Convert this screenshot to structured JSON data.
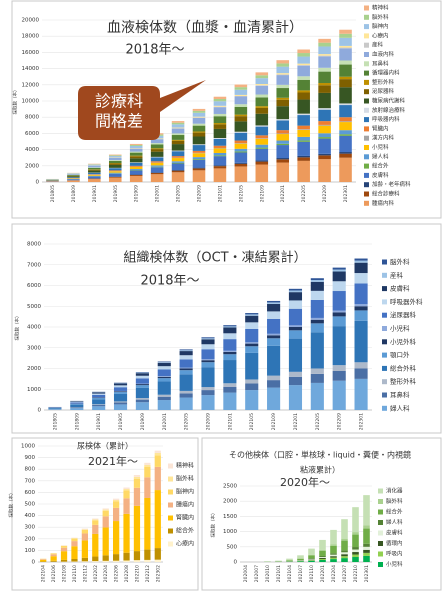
{
  "chart_data": [
    {
      "type": "bar",
      "stacked": true,
      "grid": true,
      "title": "血液検体数（血漿・血清累計）",
      "subtitle": "2018年～",
      "ylabel": "採取数（本）",
      "annotations": [
        "診療科",
        "間格差"
      ],
      "ylim": [
        0,
        20000
      ],
      "yticks": [
        0,
        2000,
        4000,
        6000,
        8000,
        10000,
        12000,
        14000,
        16000,
        18000,
        20000
      ],
      "categories": [
        "201805",
        "201809",
        "201901",
        "201905",
        "201909",
        "202001",
        "202005",
        "202009",
        "202101",
        "202105",
        "202109",
        "202201",
        "202205",
        "202209",
        "202301"
      ],
      "series": [
        {
          "name": "精神科",
          "color": "#f4b183",
          "values": [
            10,
            30,
            60,
            90,
            125,
            160,
            200,
            240,
            280,
            320,
            360,
            400,
            435,
            470,
            500
          ]
        },
        {
          "name": "脳外科",
          "color": "#a9d18e",
          "values": [
            10,
            30,
            60,
            90,
            125,
            160,
            200,
            240,
            280,
            320,
            360,
            400,
            435,
            470,
            500
          ]
        },
        {
          "name": "脳神内",
          "color": "#9dc3e6",
          "values": [
            20,
            60,
            120,
            180,
            250,
            320,
            400,
            480,
            560,
            640,
            720,
            800,
            870,
            940,
            1000
          ]
        },
        {
          "name": "心療内",
          "color": "#ffe699",
          "values": [
            4,
            12,
            24,
            36,
            50,
            64,
            80,
            96,
            112,
            128,
            144,
            160,
            174,
            188,
            200
          ]
        },
        {
          "name": "産科",
          "color": "#c9c9c9",
          "values": [
            2,
            6,
            12,
            18,
            25,
            32,
            40,
            48,
            56,
            64,
            72,
            80,
            87,
            94,
            100
          ]
        },
        {
          "name": "血液内科",
          "color": "#8faadc",
          "values": [
            30,
            90,
            180,
            270,
            375,
            480,
            600,
            720,
            840,
            960,
            1080,
            1200,
            1305,
            1410,
            1500
          ]
        },
        {
          "name": "耳鼻科",
          "color": "#c5e0b4",
          "values": [
            10,
            30,
            60,
            90,
            125,
            160,
            200,
            240,
            280,
            320,
            360,
            400,
            435,
            470,
            500
          ]
        },
        {
          "name": "循環器内科",
          "color": "#548235",
          "values": [
            30,
            90,
            180,
            270,
            375,
            480,
            600,
            720,
            840,
            960,
            1080,
            1200,
            1305,
            1410,
            1500
          ]
        },
        {
          "name": "整形外科",
          "color": "#bf9000",
          "values": [
            6,
            18,
            36,
            54,
            75,
            96,
            120,
            144,
            168,
            192,
            216,
            240,
            261,
            282,
            300
          ]
        },
        {
          "name": "泌尿器科",
          "color": "#7f6000",
          "values": [
            20,
            60,
            120,
            180,
            250,
            320,
            400,
            480,
            560,
            640,
            720,
            800,
            870,
            940,
            1000
          ]
        },
        {
          "name": "糖尿病代謝科",
          "color": "#375623",
          "values": [
            40,
            120,
            240,
            360,
            500,
            640,
            800,
            960,
            1120,
            1280,
            1440,
            1600,
            1740,
            1880,
            2000
          ]
        },
        {
          "name": "放射線治療科",
          "color": "#d6dce5",
          "values": [
            4,
            12,
            24,
            36,
            50,
            64,
            80,
            96,
            112,
            128,
            144,
            160,
            174,
            188,
            200
          ]
        },
        {
          "name": "呼吸器内科",
          "color": "#2e75b6",
          "values": [
            30,
            90,
            180,
            270,
            375,
            480,
            600,
            720,
            840,
            960,
            1080,
            1200,
            1305,
            1410,
            1500
          ]
        },
        {
          "name": "腎臓内",
          "color": "#ed7d31",
          "values": [
            10,
            30,
            60,
            90,
            125,
            160,
            200,
            240,
            280,
            320,
            360,
            400,
            435,
            470,
            500
          ]
        },
        {
          "name": "漢方内科",
          "color": "#a5a5a5",
          "values": [
            2,
            6,
            12,
            18,
            25,
            32,
            40,
            48,
            56,
            64,
            72,
            80,
            87,
            94,
            100
          ]
        },
        {
          "name": "小児科",
          "color": "#ffc000",
          "values": [
            20,
            60,
            120,
            180,
            250,
            320,
            400,
            480,
            560,
            640,
            720,
            800,
            870,
            940,
            1000
          ]
        },
        {
          "name": "婦人科",
          "color": "#5b9bd5",
          "values": [
            10,
            30,
            60,
            90,
            125,
            160,
            200,
            240,
            280,
            320,
            360,
            400,
            435,
            470,
            500
          ]
        },
        {
          "name": "総合外",
          "color": "#70ad47",
          "values": [
            4,
            12,
            24,
            36,
            50,
            64,
            80,
            96,
            112,
            128,
            144,
            160,
            174,
            188,
            200
          ]
        },
        {
          "name": "皮膚科",
          "color": "#4472c4",
          "values": [
            40,
            120,
            240,
            360,
            500,
            640,
            800,
            960,
            1120,
            1280,
            1440,
            1600,
            1740,
            1880,
            2000
          ]
        },
        {
          "name": "加齢・老年病科",
          "color": "#264478",
          "values": [
            4,
            12,
            24,
            36,
            50,
            64,
            80,
            96,
            112,
            128,
            144,
            160,
            174,
            188,
            200
          ]
        },
        {
          "name": "総合診療科",
          "color": "#9e480e",
          "values": [
            10,
            30,
            60,
            90,
            125,
            160,
            200,
            240,
            280,
            320,
            360,
            400,
            435,
            470,
            500
          ]
        },
        {
          "name": "腫瘍内科",
          "color": "#ed9a5c",
          "values": [
            60,
            180,
            360,
            540,
            750,
            960,
            1200,
            1440,
            1680,
            1920,
            2160,
            2400,
            2610,
            2820,
            3000
          ]
        }
      ]
    },
    {
      "type": "bar",
      "stacked": true,
      "grid": true,
      "title": "組織検体数（OCT・凍結累計）",
      "subtitle": "2018年～",
      "ylabel": "採取数（本）",
      "ylim": [
        0,
        8000
      ],
      "yticks": [
        0,
        1000,
        2000,
        3000,
        4000,
        5000,
        6000,
        7000,
        8000
      ],
      "categories": [
        "201805",
        "201809",
        "201901",
        "201905",
        "201909",
        "202001",
        "202005",
        "202009",
        "202101",
        "202105",
        "202109",
        "202201",
        "202205",
        "202209",
        "202301"
      ],
      "series": [
        {
          "name": "脳外科",
          "color": "#2f5597",
          "values": [
            2,
            6,
            12,
            18,
            25,
            32,
            40,
            48,
            56,
            64,
            72,
            80,
            87,
            94,
            100
          ]
        },
        {
          "name": "産科",
          "color": "#9dc3e6",
          "values": [
            2,
            6,
            12,
            18,
            25,
            32,
            40,
            48,
            56,
            64,
            72,
            80,
            87,
            94,
            100
          ]
        },
        {
          "name": "皮膚科",
          "color": "#1f3864",
          "values": [
            10,
            30,
            60,
            90,
            125,
            160,
            200,
            240,
            280,
            320,
            360,
            400,
            435,
            470,
            500
          ]
        },
        {
          "name": "呼吸器外科",
          "color": "#bdd7ee",
          "values": [
            10,
            30,
            60,
            90,
            125,
            160,
            200,
            240,
            280,
            320,
            360,
            400,
            435,
            470,
            500
          ]
        },
        {
          "name": "泌尿器科",
          "color": "#4472c4",
          "values": [
            20,
            60,
            120,
            180,
            250,
            320,
            400,
            480,
            560,
            640,
            720,
            800,
            870,
            940,
            1000
          ]
        },
        {
          "name": "小児科",
          "color": "#8faadc",
          "values": [
            2,
            6,
            12,
            18,
            25,
            32,
            40,
            48,
            56,
            64,
            72,
            80,
            87,
            94,
            100
          ]
        },
        {
          "name": "小児外科",
          "color": "#203864",
          "values": [
            4,
            12,
            24,
            36,
            50,
            64,
            80,
            96,
            112,
            128,
            144,
            160,
            174,
            188,
            200
          ]
        },
        {
          "name": "顎口外",
          "color": "#5b9bd5",
          "values": [
            10,
            30,
            60,
            90,
            125,
            160,
            200,
            240,
            280,
            320,
            360,
            400,
            435,
            470,
            500
          ]
        },
        {
          "name": "総合外科",
          "color": "#2e75b6",
          "values": [
            40,
            120,
            240,
            360,
            500,
            640,
            800,
            960,
            1120,
            1280,
            1440,
            1600,
            1740,
            1880,
            2000
          ]
        },
        {
          "name": "整形外科",
          "color": "#adb9ca",
          "values": [
            6,
            18,
            36,
            54,
            75,
            96,
            120,
            144,
            168,
            192,
            216,
            240,
            261,
            282,
            300
          ]
        },
        {
          "name": "耳鼻科",
          "color": "#4a6fa5",
          "values": [
            10,
            30,
            60,
            90,
            125,
            160,
            200,
            240,
            280,
            320,
            360,
            400,
            435,
            470,
            500
          ]
        },
        {
          "name": "婦人科",
          "color": "#6fa8dc",
          "values": [
            30,
            90,
            180,
            270,
            375,
            480,
            600,
            720,
            840,
            960,
            1080,
            1200,
            1305,
            1410,
            1500
          ]
        }
      ]
    },
    {
      "type": "bar",
      "stacked": true,
      "grid": true,
      "title": "尿検体（累計）",
      "subtitle": "2021年～",
      "ylabel": "採取数（本）",
      "ylim": [
        0,
        1000
      ],
      "yticks": [
        0,
        100,
        200,
        300,
        400,
        500,
        600,
        700,
        800,
        900,
        1000
      ],
      "categories": [
        "202104",
        "202106",
        "202108",
        "202110",
        "202112",
        "202202",
        "202204",
        "202206",
        "202208",
        "202210",
        "202212",
        "202302"
      ],
      "series": [
        {
          "name": "精神科",
          "color": "#fbe5d6",
          "values": [
            1,
            2,
            3,
            4,
            6,
            8,
            10,
            11,
            13,
            16,
            18,
            20
          ]
        },
        {
          "name": "脳外科",
          "color": "#ffe699",
          "values": [
            1,
            2,
            3,
            4,
            6,
            8,
            10,
            11,
            13,
            16,
            18,
            20
          ]
        },
        {
          "name": "脳神内",
          "color": "#ffd966",
          "values": [
            3,
            8,
            15,
            22,
            30,
            39,
            48,
            57,
            67,
            78,
            89,
            100
          ]
        },
        {
          "name": "腫瘍内",
          "color": "#f4b183",
          "values": [
            6,
            16,
            30,
            44,
            60,
            78,
            96,
            114,
            134,
            156,
            178,
            200
          ]
        },
        {
          "name": "腎臓内",
          "color": "#ffc000",
          "values": [
            15,
            40,
            75,
            110,
            150,
            195,
            240,
            285,
            335,
            390,
            445,
            500
          ]
        },
        {
          "name": "総合外",
          "color": "#bf9000",
          "values": [
            3,
            8,
            15,
            22,
            30,
            39,
            48,
            57,
            67,
            78,
            89,
            100
          ]
        },
        {
          "name": "心療内",
          "color": "#fff2cc",
          "values": [
            1,
            2,
            3,
            4,
            6,
            8,
            10,
            11,
            13,
            16,
            18,
            20
          ]
        }
      ]
    },
    {
      "type": "bar",
      "stacked": true,
      "grid": true,
      "title": [
        "その他検体（口腔・単核球・liquid・糞便・内視鏡",
        "粘液累計）"
      ],
      "subtitle": "2020年～",
      "ylabel": "採取数（本）",
      "ylim": [
        0,
        2500
      ],
      "yticks": [
        0,
        500,
        1000,
        1500,
        2000,
        2500
      ],
      "categories": [
        "202004",
        "202007",
        "202010",
        "202101",
        "202104",
        "202107",
        "202110",
        "202201",
        "202204",
        "202207",
        "202210",
        "202301"
      ],
      "series": [
        {
          "name": "消化器",
          "color": "#c5e0b4",
          "values": [
            0,
            0,
            10,
            20,
            50,
            100,
            200,
            330,
            480,
            640,
            820,
            1000
          ]
        },
        {
          "name": "脳外科",
          "color": "#a9d18e",
          "values": [
            0,
            0,
            1,
            2,
            5,
            10,
            20,
            33,
            48,
            64,
            82,
            100
          ]
        },
        {
          "name": "総合外",
          "color": "#70ad47",
          "values": [
            0,
            0,
            5,
            10,
            25,
            50,
            100,
            165,
            240,
            320,
            410,
            500
          ]
        },
        {
          "name": "婦人科",
          "color": "#548235",
          "values": [
            0,
            0,
            1,
            2,
            5,
            10,
            20,
            33,
            48,
            64,
            82,
            100
          ]
        },
        {
          "name": "皮膚科",
          "color": "#e2f0d9",
          "values": [
            0,
            0,
            1,
            2,
            5,
            10,
            20,
            33,
            48,
            64,
            82,
            100
          ]
        },
        {
          "name": "循環内",
          "color": "#385723",
          "values": [
            0,
            0,
            1,
            2,
            5,
            10,
            20,
            33,
            48,
            64,
            82,
            100
          ]
        },
        {
          "name": "呼吸内",
          "color": "#92d050",
          "values": [
            0,
            0,
            1,
            2,
            5,
            10,
            20,
            33,
            48,
            64,
            82,
            100
          ]
        },
        {
          "name": "小児科",
          "color": "#00b050",
          "values": [
            0,
            0,
            2,
            4,
            10,
            20,
            40,
            66,
            96,
            128,
            164,
            200
          ]
        }
      ]
    }
  ]
}
